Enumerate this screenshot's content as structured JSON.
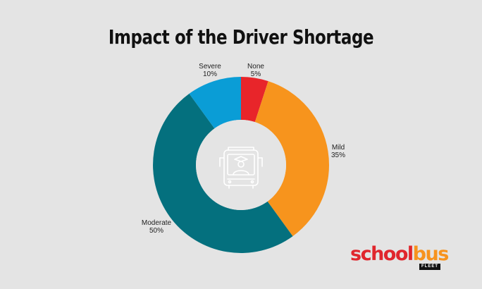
{
  "chart_data": {
    "type": "donut",
    "title": "Impact of the Driver Shortage",
    "slices": [
      {
        "label": "None",
        "value": 5,
        "value_label": "5%",
        "color": "#e8252a"
      },
      {
        "label": "Mild",
        "value": 35,
        "value_label": "35%",
        "color": "#f7941d"
      },
      {
        "label": "Moderate",
        "value": 50,
        "value_label": "50%",
        "color": "#04707e"
      },
      {
        "label": "Severe",
        "value": 10,
        "value_label": "10%",
        "color": "#0a9dd6"
      }
    ],
    "center_icon": "bus-driver-icon",
    "start_angle": "12 o'clock",
    "direction": "clockwise"
  },
  "brand": {
    "school": "school",
    "bus": "bus",
    "fleet": "FLEET"
  }
}
